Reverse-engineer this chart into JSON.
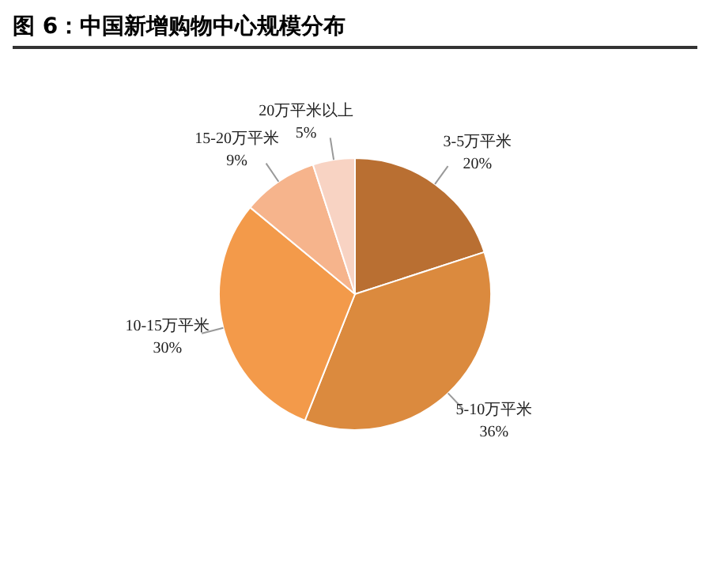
{
  "chart_data": {
    "type": "pie",
    "title": "图 6：中国新增购物中心规模分布",
    "categories": [
      "3-5万平米",
      "5-10万平米",
      "10-15万平米",
      "15-20万平米",
      "20万平米以上"
    ],
    "values": [
      20,
      36,
      30,
      9,
      5
    ],
    "value_labels": [
      "20%",
      "36%",
      "30%",
      "9%",
      "5%"
    ],
    "colors": [
      "#b96f32",
      "#db8a3e",
      "#f39a4a",
      "#f6b48c",
      "#f8d3c3"
    ],
    "legend": false
  }
}
